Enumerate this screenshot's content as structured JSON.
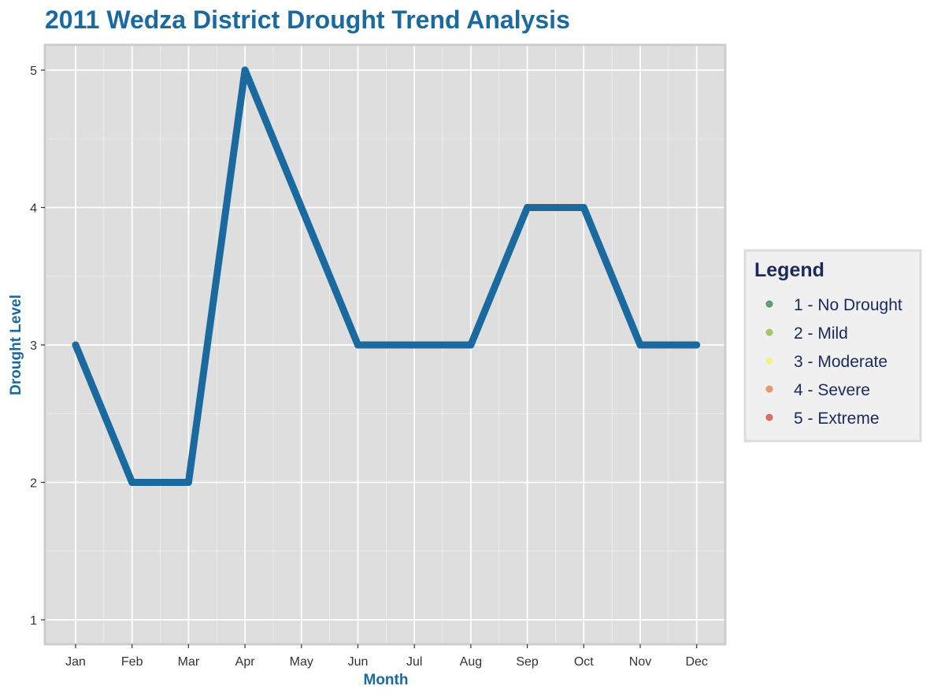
{
  "chart_data": {
    "type": "line",
    "title": "2011 Wedza District Drought Trend Analysis",
    "xlabel": "Month",
    "ylabel": "Drought Level",
    "categories": [
      "Jan",
      "Feb",
      "Mar",
      "Apr",
      "May",
      "Jun",
      "Jul",
      "Aug",
      "Sep",
      "Oct",
      "Nov",
      "Dec"
    ],
    "series": [
      {
        "values": [
          3,
          2,
          2,
          5,
          4,
          3,
          3,
          3,
          4,
          4,
          3,
          3
        ],
        "color": "#1a6aa0"
      }
    ],
    "ylim": [
      1,
      5
    ],
    "yticks": [
      "1",
      "2",
      "3",
      "4",
      "5"
    ],
    "grid": true,
    "legend": {
      "title": "Legend",
      "position": "right",
      "items": [
        {
          "label": "1 - No Drought",
          "color": "#4f8f5f"
        },
        {
          "label": "2 - Mild",
          "color": "#9bbf5a"
        },
        {
          "label": "3 - Moderate",
          "color": "#f4f27a"
        },
        {
          "label": "4 - Severe",
          "color": "#e58b5c"
        },
        {
          "label": "5 - Extreme",
          "color": "#d45a5a"
        }
      ]
    }
  },
  "colors": {
    "title": "#1a6aa0",
    "line": "#1a6aa0",
    "panel_bg": "#dedede",
    "panel_border": "#cccccc",
    "grid": "#ffffff",
    "legend_bg": "#f0f0f0",
    "legend_text": "#1a2a5a"
  }
}
